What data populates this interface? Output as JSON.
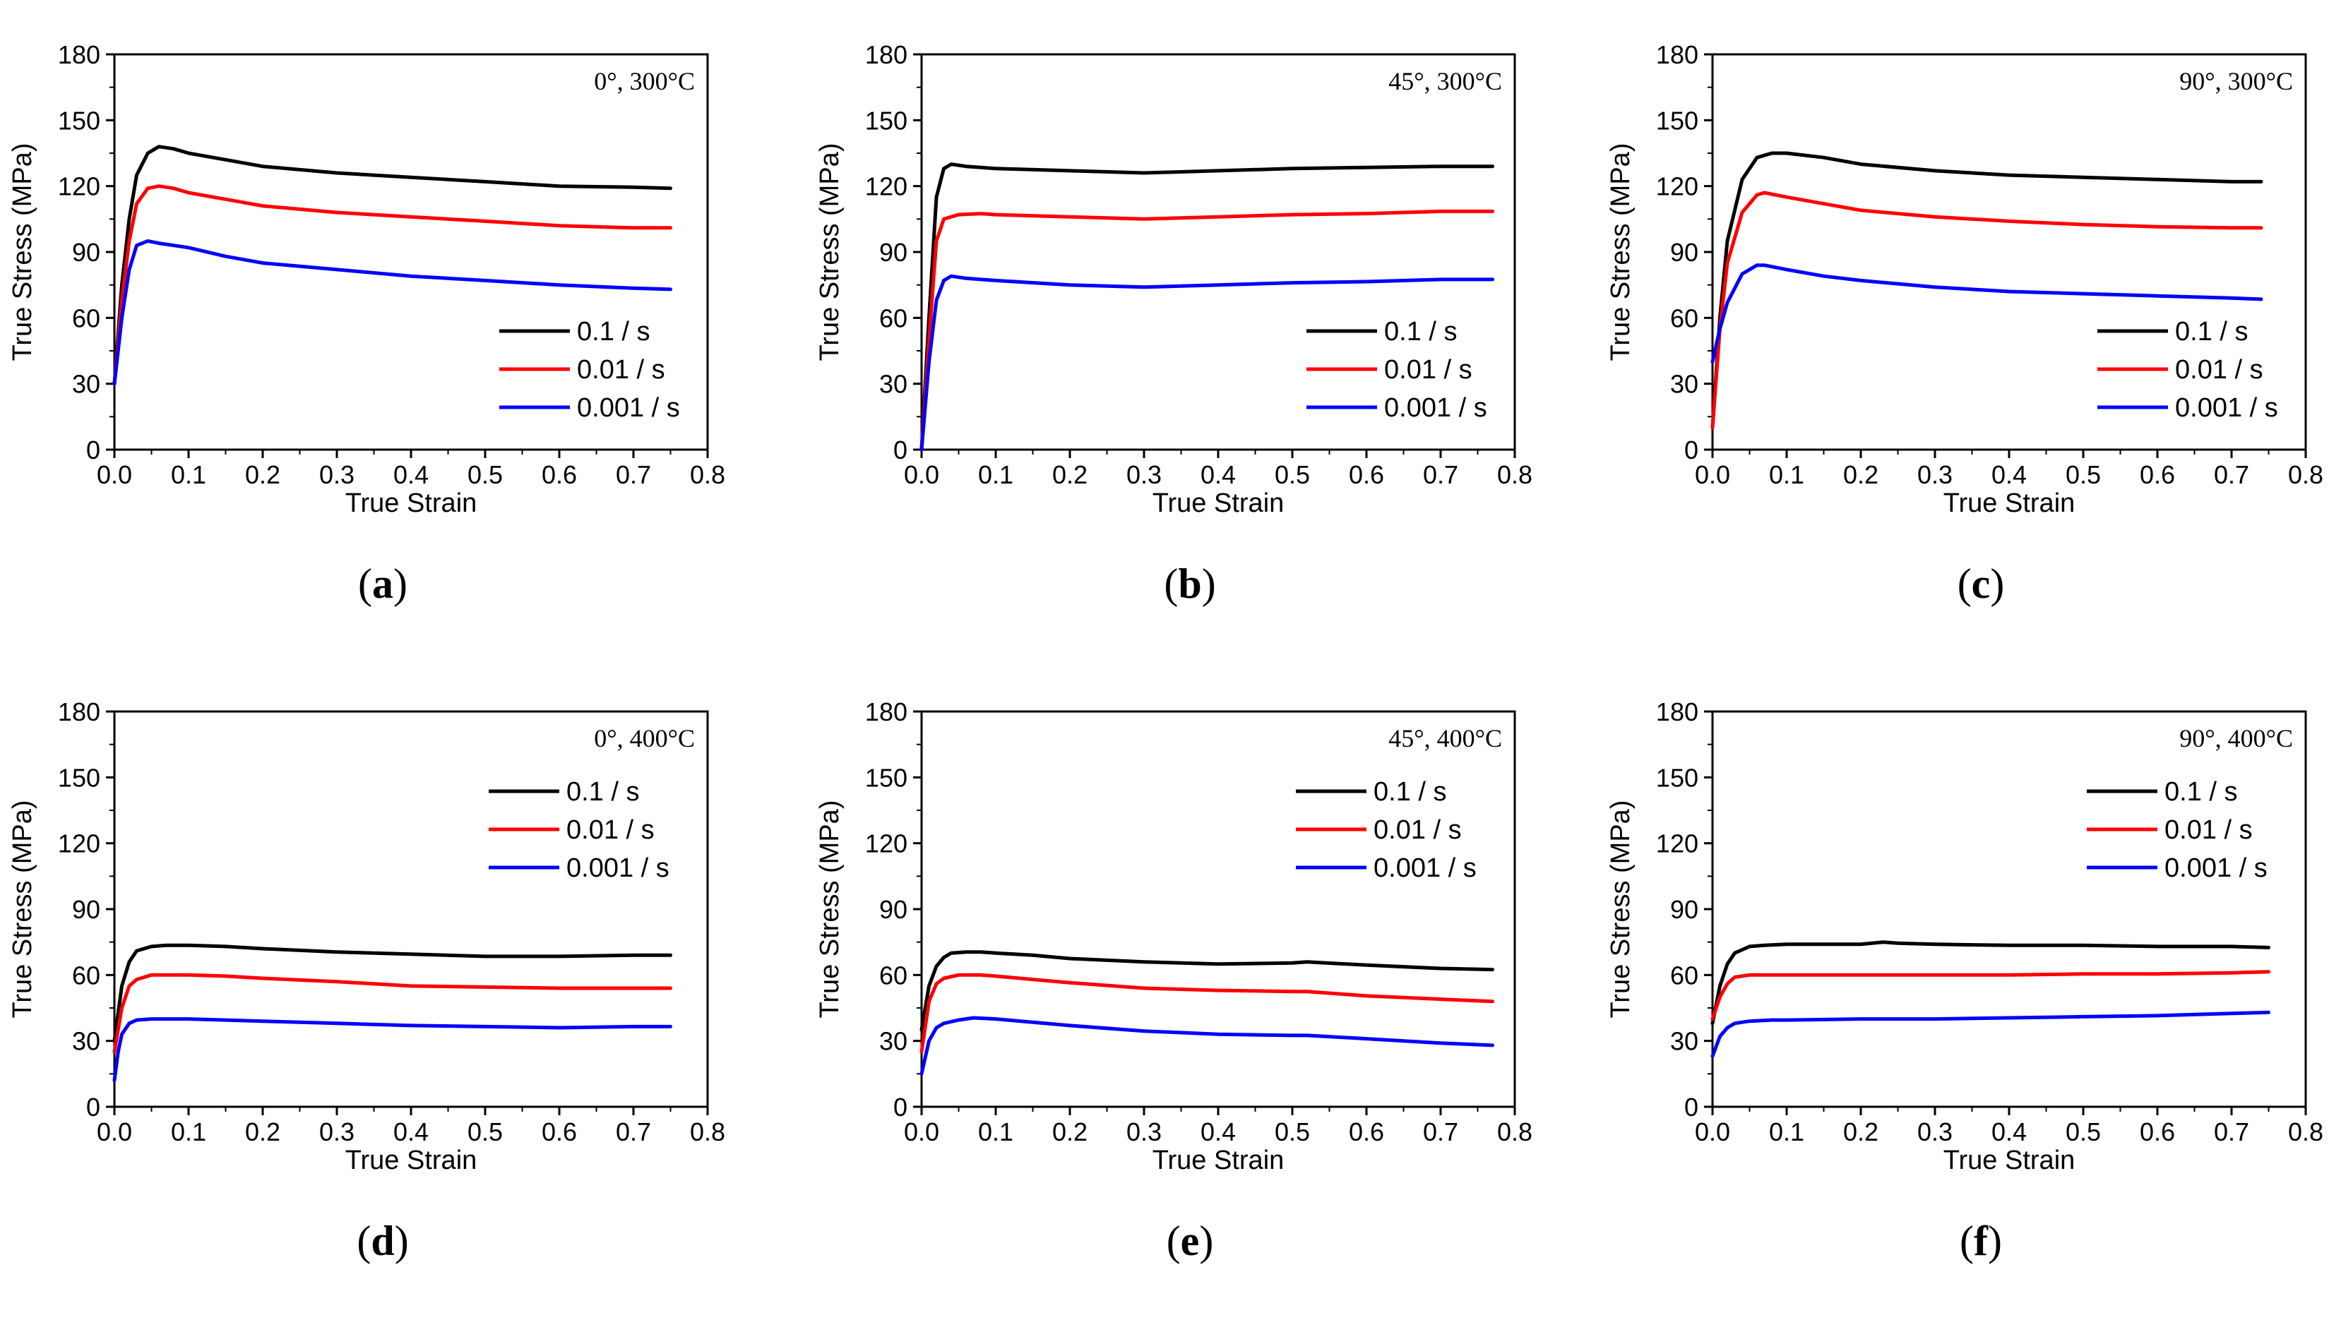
{
  "colors": {
    "0.1 / s": "#000000",
    "0.01 / s": "#ff0000",
    "0.001 / s": "#0000ff"
  },
  "chart_data": [
    {
      "type": "line",
      "label": "a",
      "annotation": "0°, 300°C",
      "xlabel": "True Strain",
      "ylabel": "True Stress (MPa)",
      "xlim": [
        0,
        0.8
      ],
      "ylim": [
        0,
        180
      ],
      "xticks": [
        "0.0",
        "0.1",
        "0.2",
        "0.3",
        "0.4",
        "0.5",
        "0.6",
        "0.7",
        "0.8"
      ],
      "yticks": [
        "0",
        "30",
        "60",
        "90",
        "120",
        "150",
        "180"
      ],
      "legend_position": "bottom-right",
      "series": [
        {
          "name": "0.1 / s",
          "x": [
            0,
            0.01,
            0.02,
            0.03,
            0.045,
            0.06,
            0.08,
            0.1,
            0.15,
            0.2,
            0.3,
            0.4,
            0.5,
            0.6,
            0.7,
            0.75
          ],
          "y": [
            30,
            75,
            105,
            125,
            135,
            138,
            137,
            135,
            132,
            129,
            126,
            124,
            122,
            120,
            119.5,
            119
          ]
        },
        {
          "name": "0.01 / s",
          "x": [
            0,
            0.01,
            0.02,
            0.03,
            0.045,
            0.06,
            0.08,
            0.1,
            0.15,
            0.2,
            0.3,
            0.4,
            0.5,
            0.6,
            0.7,
            0.75
          ],
          "y": [
            30,
            68,
            95,
            112,
            119,
            120,
            119,
            117,
            114,
            111,
            108,
            106,
            104,
            102,
            101,
            101
          ]
        },
        {
          "name": "0.001 / s",
          "x": [
            0,
            0.01,
            0.02,
            0.03,
            0.045,
            0.06,
            0.08,
            0.1,
            0.15,
            0.2,
            0.3,
            0.4,
            0.5,
            0.6,
            0.7,
            0.75
          ],
          "y": [
            30,
            60,
            82,
            93,
            95,
            94,
            93,
            92,
            88,
            85,
            82,
            79,
            77,
            75,
            73.5,
            73
          ]
        }
      ]
    },
    {
      "type": "line",
      "label": "b",
      "annotation": "45°, 300°C",
      "xlabel": "True Strain",
      "ylabel": "True Stress (MPa)",
      "xlim": [
        0,
        0.8
      ],
      "ylim": [
        0,
        180
      ],
      "xticks": [
        "0.0",
        "0.1",
        "0.2",
        "0.3",
        "0.4",
        "0.5",
        "0.6",
        "0.7",
        "0.8"
      ],
      "yticks": [
        "0",
        "30",
        "60",
        "90",
        "120",
        "150",
        "180"
      ],
      "legend_position": "bottom-right",
      "series": [
        {
          "name": "0.1 / s",
          "x": [
            0,
            0.01,
            0.02,
            0.03,
            0.04,
            0.06,
            0.1,
            0.2,
            0.3,
            0.4,
            0.5,
            0.6,
            0.7,
            0.77
          ],
          "y": [
            0,
            60,
            115,
            128,
            130,
            129,
            128,
            127,
            126,
            127,
            128,
            128.5,
            129,
            129
          ]
        },
        {
          "name": "0.01 / s",
          "x": [
            0,
            0.01,
            0.02,
            0.03,
            0.05,
            0.08,
            0.1,
            0.2,
            0.3,
            0.4,
            0.5,
            0.6,
            0.7,
            0.77
          ],
          "y": [
            0,
            50,
            95,
            105,
            107,
            107.5,
            107,
            106,
            105,
            106,
            107,
            107.5,
            108.5,
            108.5
          ]
        },
        {
          "name": "0.001 / s",
          "x": [
            0,
            0.01,
            0.02,
            0.03,
            0.04,
            0.06,
            0.1,
            0.2,
            0.3,
            0.4,
            0.5,
            0.6,
            0.7,
            0.77
          ],
          "y": [
            0,
            40,
            68,
            77,
            79,
            78,
            77,
            75,
            74,
            75,
            76,
            76.5,
            77.5,
            77.5
          ]
        }
      ]
    },
    {
      "type": "line",
      "label": "c",
      "annotation": "90°, 300°C",
      "xlabel": "True Strain",
      "ylabel": "True Stress (MPa)",
      "xlim": [
        0,
        0.8
      ],
      "ylim": [
        0,
        180
      ],
      "xticks": [
        "0.0",
        "0.1",
        "0.2",
        "0.3",
        "0.4",
        "0.5",
        "0.6",
        "0.7",
        "0.8"
      ],
      "yticks": [
        "0",
        "30",
        "60",
        "90",
        "120",
        "150",
        "180"
      ],
      "legend_position": "bottom-right",
      "series": [
        {
          "name": "0.1 / s",
          "x": [
            0,
            0.01,
            0.02,
            0.04,
            0.06,
            0.08,
            0.1,
            0.15,
            0.2,
            0.3,
            0.4,
            0.5,
            0.6,
            0.7,
            0.74
          ],
          "y": [
            10,
            60,
            95,
            123,
            133,
            135,
            135,
            133,
            130,
            127,
            125,
            124,
            123,
            122,
            122
          ]
        },
        {
          "name": "0.01 / s",
          "x": [
            0,
            0.01,
            0.02,
            0.04,
            0.06,
            0.07,
            0.1,
            0.15,
            0.2,
            0.3,
            0.4,
            0.5,
            0.6,
            0.7,
            0.74
          ],
          "y": [
            10,
            55,
            85,
            108,
            116,
            117,
            115,
            112,
            109,
            106,
            104,
            102.5,
            101.5,
            101,
            101
          ]
        },
        {
          "name": "0.001 / s",
          "x": [
            0,
            0.01,
            0.02,
            0.04,
            0.06,
            0.07,
            0.1,
            0.15,
            0.2,
            0.3,
            0.4,
            0.5,
            0.6,
            0.7,
            0.74
          ],
          "y": [
            40,
            55,
            67,
            80,
            84,
            84,
            82,
            79,
            77,
            74,
            72,
            71,
            70,
            69,
            68.5
          ]
        }
      ]
    },
    {
      "type": "line",
      "label": "d",
      "annotation": "0°, 400°C",
      "xlabel": "True Strain",
      "ylabel": "True Stress (MPa)",
      "xlim": [
        0,
        0.8
      ],
      "ylim": [
        0,
        180
      ],
      "xticks": [
        "0.0",
        "0.1",
        "0.2",
        "0.3",
        "0.4",
        "0.5",
        "0.6",
        "0.7",
        "0.8"
      ],
      "yticks": [
        "0",
        "30",
        "60",
        "90",
        "120",
        "150",
        "180"
      ],
      "legend_position": "top-right",
      "series": [
        {
          "name": "0.1 / s",
          "x": [
            0,
            0.01,
            0.02,
            0.03,
            0.05,
            0.07,
            0.1,
            0.15,
            0.2,
            0.3,
            0.4,
            0.5,
            0.6,
            0.7,
            0.75
          ],
          "y": [
            30,
            55,
            66,
            71,
            73,
            73.5,
            73.5,
            73,
            72,
            70.5,
            69.5,
            68.5,
            68.5,
            69,
            69
          ]
        },
        {
          "name": "0.01 / s",
          "x": [
            0,
            0.01,
            0.02,
            0.03,
            0.05,
            0.07,
            0.1,
            0.15,
            0.2,
            0.3,
            0.4,
            0.5,
            0.6,
            0.7,
            0.75
          ],
          "y": [
            25,
            45,
            55,
            58,
            60,
            60,
            60,
            59.5,
            58.5,
            57,
            55,
            54.5,
            54,
            54,
            54
          ]
        },
        {
          "name": "0.001 / s",
          "x": [
            0,
            0.005,
            0.01,
            0.02,
            0.03,
            0.05,
            0.08,
            0.1,
            0.15,
            0.2,
            0.3,
            0.4,
            0.5,
            0.6,
            0.7,
            0.75
          ],
          "y": [
            12,
            25,
            33,
            38,
            39.5,
            40,
            40,
            40,
            39.5,
            39,
            38,
            37,
            36.5,
            36,
            36.5,
            36.5
          ]
        }
      ]
    },
    {
      "type": "line",
      "label": "e",
      "annotation": "45°, 400°C",
      "xlabel": "True Strain",
      "ylabel": "True Stress (MPa)",
      "xlim": [
        0,
        0.8
      ],
      "ylim": [
        0,
        180
      ],
      "xticks": [
        "0.0",
        "0.1",
        "0.2",
        "0.3",
        "0.4",
        "0.5",
        "0.6",
        "0.7",
        "0.8"
      ],
      "yticks": [
        "0",
        "30",
        "60",
        "90",
        "120",
        "150",
        "180"
      ],
      "legend_position": "top-right",
      "series": [
        {
          "name": "0.1 / s",
          "x": [
            0,
            0.01,
            0.02,
            0.03,
            0.04,
            0.06,
            0.08,
            0.1,
            0.15,
            0.2,
            0.3,
            0.4,
            0.5,
            0.52,
            0.6,
            0.7,
            0.77
          ],
          "y": [
            35,
            55,
            64,
            68,
            70,
            70.5,
            70.5,
            70,
            69,
            67.5,
            66,
            65,
            65.5,
            66,
            64.5,
            63,
            62.5
          ]
        },
        {
          "name": "0.01 / s",
          "x": [
            0,
            0.01,
            0.02,
            0.03,
            0.05,
            0.08,
            0.1,
            0.15,
            0.2,
            0.3,
            0.4,
            0.5,
            0.52,
            0.6,
            0.7,
            0.77
          ],
          "y": [
            25,
            48,
            56,
            58.5,
            60,
            60,
            59.5,
            58,
            56.5,
            54,
            53,
            52.5,
            52.5,
            50.5,
            49,
            48
          ]
        },
        {
          "name": "0.001 / s",
          "x": [
            0,
            0.01,
            0.02,
            0.03,
            0.05,
            0.07,
            0.1,
            0.15,
            0.2,
            0.3,
            0.4,
            0.5,
            0.52,
            0.6,
            0.7,
            0.77
          ],
          "y": [
            15,
            30,
            36,
            38,
            39.5,
            40.5,
            40,
            38.5,
            37,
            34.5,
            33,
            32.5,
            32.5,
            31,
            29,
            28
          ]
        }
      ]
    },
    {
      "type": "line",
      "label": "f",
      "annotation": "90°, 400°C",
      "xlabel": "True Strain",
      "ylabel": "True Stress (MPa)",
      "xlim": [
        0,
        0.8
      ],
      "ylim": [
        0,
        180
      ],
      "xticks": [
        "0.0",
        "0.1",
        "0.2",
        "0.3",
        "0.4",
        "0.5",
        "0.6",
        "0.7",
        "0.8"
      ],
      "yticks": [
        "0",
        "30",
        "60",
        "90",
        "120",
        "150",
        "180"
      ],
      "legend_position": "top-right",
      "series": [
        {
          "name": "0.1 / s",
          "x": [
            0,
            0.01,
            0.02,
            0.03,
            0.05,
            0.07,
            0.1,
            0.15,
            0.2,
            0.23,
            0.25,
            0.3,
            0.4,
            0.5,
            0.6,
            0.7,
            0.75
          ],
          "y": [
            38,
            55,
            65,
            70,
            73,
            73.5,
            74,
            74,
            74,
            75,
            74.5,
            74,
            73.5,
            73.5,
            73,
            73,
            72.5
          ]
        },
        {
          "name": "0.01 / s",
          "x": [
            0,
            0.01,
            0.02,
            0.03,
            0.05,
            0.07,
            0.1,
            0.2,
            0.3,
            0.4,
            0.5,
            0.6,
            0.7,
            0.75
          ],
          "y": [
            40,
            50,
            56,
            59,
            60,
            60,
            60,
            60,
            60,
            60,
            60.5,
            60.5,
            61,
            61.5
          ]
        },
        {
          "name": "0.001 / s",
          "x": [
            0,
            0.01,
            0.02,
            0.03,
            0.05,
            0.08,
            0.1,
            0.2,
            0.3,
            0.4,
            0.5,
            0.6,
            0.7,
            0.75
          ],
          "y": [
            23,
            32,
            36,
            38,
            39,
            39.5,
            39.5,
            40,
            40,
            40.5,
            41,
            41.5,
            42.5,
            43
          ]
        }
      ]
    }
  ]
}
